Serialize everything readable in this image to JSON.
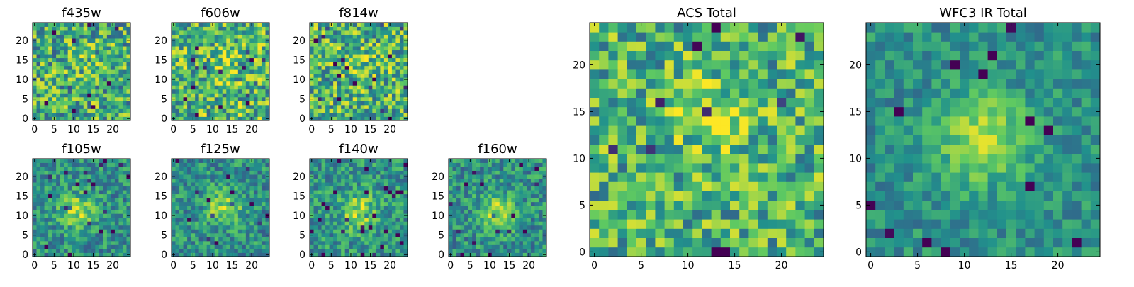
{
  "figure": {
    "background": "#ffffff"
  },
  "colormap": {
    "name": "viridis",
    "stops": [
      "#440154",
      "#3b528b",
      "#21918c",
      "#5ec962",
      "#fde725"
    ]
  },
  "chart_data": [
    {
      "type": "heatmap",
      "title": "f435w",
      "grid": 25,
      "xticks": [
        0,
        5,
        10,
        15,
        20
      ],
      "yticks": [
        0,
        5,
        10,
        15,
        20
      ],
      "xlim": [
        0,
        24
      ],
      "ylim": [
        0,
        24
      ],
      "center": [
        14,
        14
      ],
      "amplitude": 0.1,
      "noise": 0.34,
      "base": 0.62,
      "seed": 11
    },
    {
      "type": "heatmap",
      "title": "f606w",
      "grid": 25,
      "xticks": [
        0,
        5,
        10,
        15,
        20
      ],
      "yticks": [
        0,
        5,
        10,
        15,
        20
      ],
      "xlim": [
        0,
        24
      ],
      "ylim": [
        0,
        24
      ],
      "center": [
        13,
        14
      ],
      "amplitude": 0.1,
      "noise": 0.34,
      "base": 0.66,
      "seed": 23
    },
    {
      "type": "heatmap",
      "title": "f814w",
      "grid": 25,
      "xticks": [
        0,
        5,
        10,
        15,
        20
      ],
      "yticks": [
        0,
        5,
        10,
        15,
        20
      ],
      "xlim": [
        0,
        24
      ],
      "ylim": [
        0,
        24
      ],
      "center": [
        13,
        14
      ],
      "amplitude": 0.14,
      "noise": 0.34,
      "base": 0.64,
      "seed": 37
    },
    {
      "type": "heatmap",
      "title": "f105w",
      "grid": 25,
      "xticks": [
        0,
        5,
        10,
        15,
        20
      ],
      "yticks": [
        0,
        5,
        10,
        15,
        20
      ],
      "xlim": [
        0,
        24
      ],
      "ylim": [
        0,
        24
      ],
      "center": [
        11,
        11
      ],
      "amplitude": 0.34,
      "noise": 0.22,
      "base": 0.5,
      "seed": 41
    },
    {
      "type": "heatmap",
      "title": "f125w",
      "grid": 25,
      "xticks": [
        0,
        5,
        10,
        15,
        20
      ],
      "yticks": [
        0,
        5,
        10,
        15,
        20
      ],
      "xlim": [
        0,
        24
      ],
      "ylim": [
        0,
        24
      ],
      "center": [
        13,
        12
      ],
      "amplitude": 0.34,
      "noise": 0.22,
      "base": 0.5,
      "seed": 53
    },
    {
      "type": "heatmap",
      "title": "f140w",
      "grid": 25,
      "xticks": [
        0,
        5,
        10,
        15,
        20
      ],
      "yticks": [
        0,
        5,
        10,
        15,
        20
      ],
      "xlim": [
        0,
        24
      ],
      "ylim": [
        0,
        24
      ],
      "center": [
        12,
        11
      ],
      "amplitude": 0.34,
      "noise": 0.22,
      "base": 0.52,
      "seed": 67
    },
    {
      "type": "heatmap",
      "title": "f160w",
      "grid": 25,
      "xticks": [
        0,
        5,
        10,
        15,
        20
      ],
      "yticks": [
        0,
        5,
        10,
        15,
        20
      ],
      "xlim": [
        0,
        24
      ],
      "ylim": [
        0,
        24
      ],
      "center": [
        12,
        11
      ],
      "amplitude": 0.38,
      "noise": 0.22,
      "base": 0.5,
      "seed": 79
    },
    {
      "type": "heatmap",
      "title": "ACS Total",
      "grid": 25,
      "xticks": [
        0,
        5,
        10,
        15,
        20
      ],
      "yticks": [
        0,
        5,
        10,
        15,
        20
      ],
      "xlim": [
        0,
        24
      ],
      "ylim": [
        0,
        24
      ],
      "center": [
        13,
        14
      ],
      "amplitude": 0.18,
      "noise": 0.3,
      "base": 0.64,
      "seed": 97
    },
    {
      "type": "heatmap",
      "title": "WFC3 IR Total",
      "grid": 25,
      "xticks": [
        0,
        5,
        10,
        15,
        20
      ],
      "yticks": [
        0,
        5,
        10,
        15,
        20
      ],
      "xlim": [
        0,
        24
      ],
      "ylim": [
        0,
        24
      ],
      "center": [
        12,
        12
      ],
      "amplitude": 0.42,
      "noise": 0.16,
      "base": 0.5,
      "seed": 113
    }
  ]
}
